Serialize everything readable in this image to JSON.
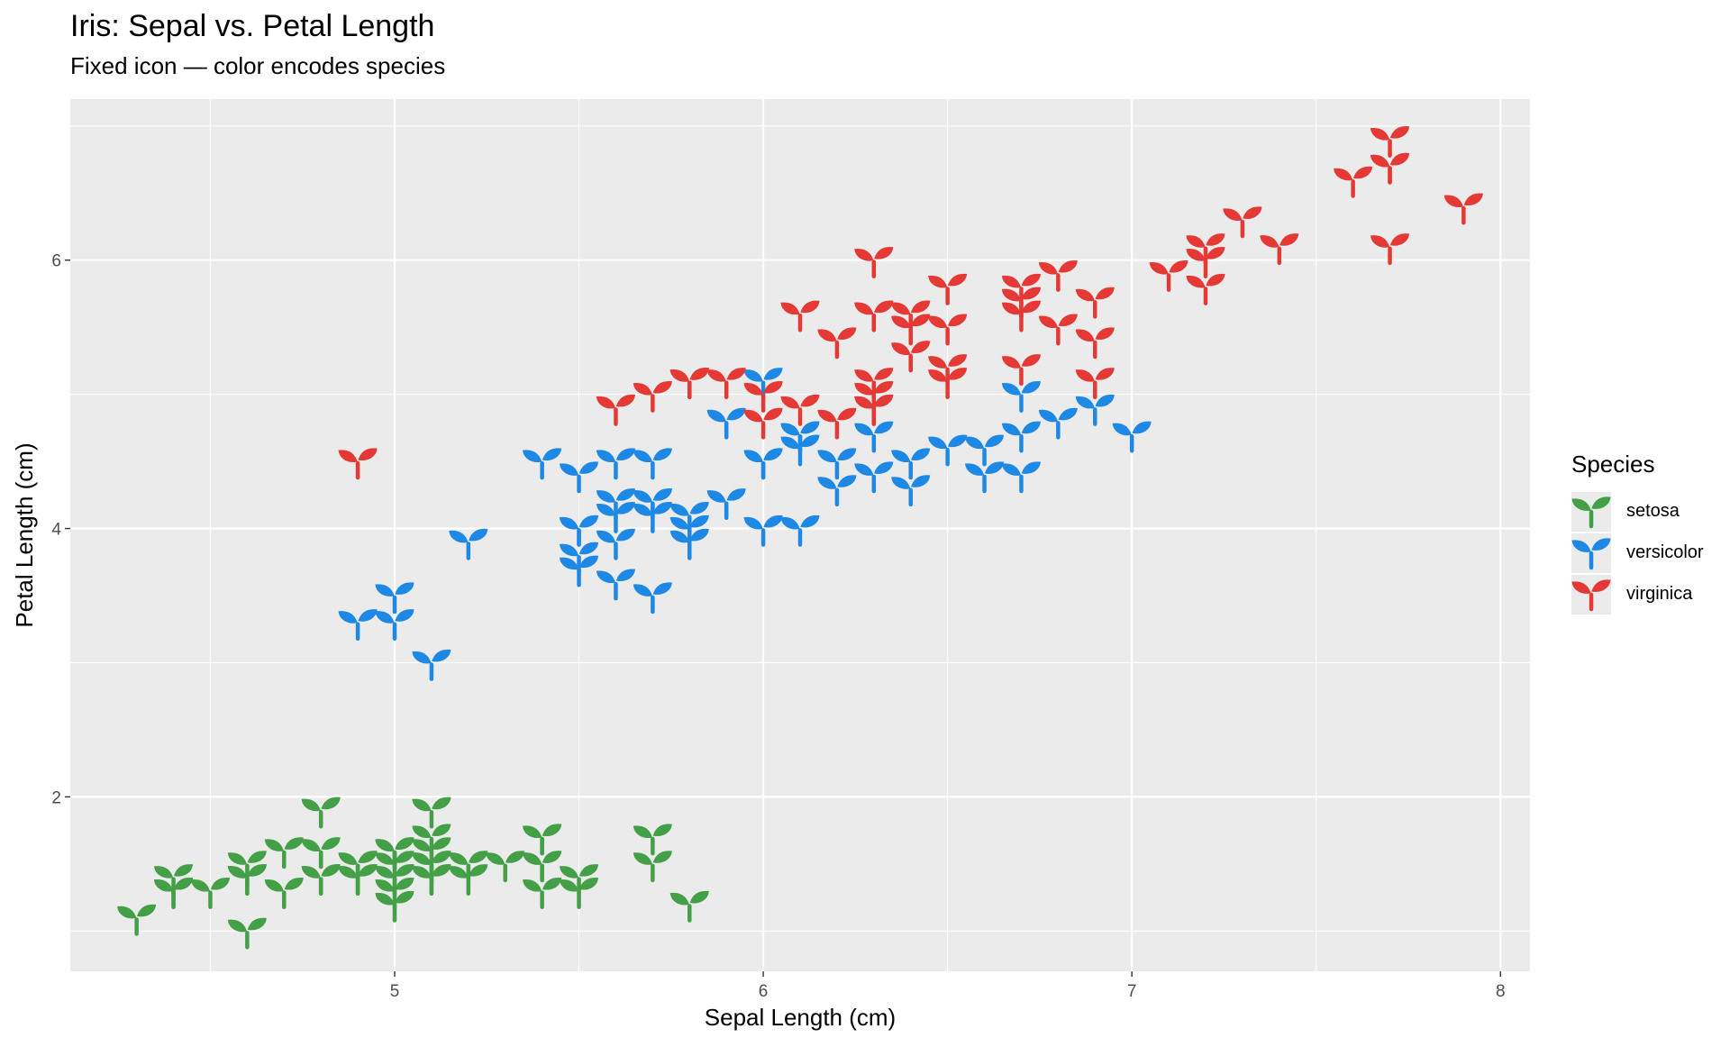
{
  "chart_data": {
    "type": "scatter",
    "title": "Iris: Sepal vs. Petal Length",
    "subtitle": "Fixed icon — color encodes species",
    "xlabel": "Sepal Length (cm)",
    "ylabel": "Petal Length (cm)",
    "xlim": [
      4.12,
      8.08
    ],
    "ylim": [
      0.7,
      7.2
    ],
    "x_ticks": [
      5,
      6,
      7,
      8
    ],
    "y_ticks": [
      2,
      4,
      6
    ],
    "x_tick_labels": [
      "5",
      "6",
      "7",
      "8"
    ],
    "y_tick_labels": [
      "2",
      "4",
      "6"
    ],
    "grid": true,
    "marker_icon": "seedling-icon",
    "legend": {
      "title": "Species",
      "position": "right"
    },
    "series": [
      {
        "name": "setosa",
        "color": "#43a047",
        "points": [
          [
            5.1,
            1.4
          ],
          [
            4.9,
            1.4
          ],
          [
            4.7,
            1.3
          ],
          [
            4.6,
            1.5
          ],
          [
            5.0,
            1.4
          ],
          [
            5.4,
            1.7
          ],
          [
            4.6,
            1.4
          ],
          [
            5.0,
            1.5
          ],
          [
            4.4,
            1.4
          ],
          [
            4.9,
            1.5
          ],
          [
            5.4,
            1.5
          ],
          [
            4.8,
            1.6
          ],
          [
            4.8,
            1.4
          ],
          [
            4.3,
            1.1
          ],
          [
            5.8,
            1.2
          ],
          [
            5.7,
            1.5
          ],
          [
            5.4,
            1.3
          ],
          [
            5.1,
            1.4
          ],
          [
            5.7,
            1.7
          ],
          [
            5.1,
            1.5
          ],
          [
            5.4,
            1.7
          ],
          [
            5.1,
            1.5
          ],
          [
            4.6,
            1.0
          ],
          [
            5.1,
            1.7
          ],
          [
            4.8,
            1.9
          ],
          [
            5.0,
            1.6
          ],
          [
            5.0,
            1.6
          ],
          [
            5.2,
            1.5
          ],
          [
            5.2,
            1.4
          ],
          [
            4.7,
            1.6
          ],
          [
            4.8,
            1.6
          ],
          [
            5.4,
            1.5
          ],
          [
            5.2,
            1.5
          ],
          [
            5.5,
            1.4
          ],
          [
            4.9,
            1.5
          ],
          [
            5.0,
            1.2
          ],
          [
            5.5,
            1.3
          ],
          [
            4.9,
            1.4
          ],
          [
            4.4,
            1.3
          ],
          [
            5.1,
            1.5
          ],
          [
            5.0,
            1.3
          ],
          [
            4.5,
            1.3
          ],
          [
            4.4,
            1.3
          ],
          [
            5.0,
            1.6
          ],
          [
            5.1,
            1.9
          ],
          [
            4.8,
            1.4
          ],
          [
            5.1,
            1.6
          ],
          [
            4.6,
            1.4
          ],
          [
            5.3,
            1.5
          ],
          [
            5.0,
            1.4
          ]
        ]
      },
      {
        "name": "versicolor",
        "color": "#1e88e5",
        "points": [
          [
            7.0,
            4.7
          ],
          [
            6.4,
            4.5
          ],
          [
            6.9,
            4.9
          ],
          [
            5.5,
            4.0
          ],
          [
            6.5,
            4.6
          ],
          [
            5.7,
            4.5
          ],
          [
            6.3,
            4.7
          ],
          [
            4.9,
            3.3
          ],
          [
            6.6,
            4.6
          ],
          [
            5.2,
            3.9
          ],
          [
            5.0,
            3.5
          ],
          [
            5.9,
            4.2
          ],
          [
            6.0,
            4.0
          ],
          [
            6.1,
            4.7
          ],
          [
            5.6,
            3.6
          ],
          [
            6.7,
            4.4
          ],
          [
            5.6,
            4.5
          ],
          [
            5.8,
            4.1
          ],
          [
            6.2,
            4.5
          ],
          [
            5.6,
            3.9
          ],
          [
            5.9,
            4.8
          ],
          [
            6.1,
            4.0
          ],
          [
            6.3,
            4.9
          ],
          [
            6.1,
            4.7
          ],
          [
            6.4,
            4.3
          ],
          [
            6.6,
            4.4
          ],
          [
            6.8,
            4.8
          ],
          [
            6.7,
            5.0
          ],
          [
            6.0,
            4.5
          ],
          [
            5.7,
            3.5
          ],
          [
            5.5,
            3.8
          ],
          [
            5.5,
            3.7
          ],
          [
            5.8,
            3.9
          ],
          [
            6.0,
            5.1
          ],
          [
            5.4,
            4.5
          ],
          [
            6.0,
            4.5
          ],
          [
            6.7,
            4.7
          ],
          [
            6.3,
            4.4
          ],
          [
            5.6,
            4.1
          ],
          [
            5.5,
            4.0
          ],
          [
            5.5,
            4.4
          ],
          [
            6.1,
            4.6
          ],
          [
            5.8,
            4.0
          ],
          [
            5.0,
            3.3
          ],
          [
            5.6,
            4.2
          ],
          [
            5.7,
            4.2
          ],
          [
            5.7,
            4.2
          ],
          [
            6.2,
            4.3
          ],
          [
            5.1,
            3.0
          ],
          [
            5.7,
            4.1
          ]
        ]
      },
      {
        "name": "virginica",
        "color": "#e53935",
        "points": [
          [
            6.3,
            6.0
          ],
          [
            5.8,
            5.1
          ],
          [
            7.1,
            5.9
          ],
          [
            6.3,
            5.6
          ],
          [
            6.5,
            5.8
          ],
          [
            7.6,
            6.6
          ],
          [
            4.9,
            4.5
          ],
          [
            7.3,
            6.3
          ],
          [
            6.7,
            5.8
          ],
          [
            7.2,
            6.1
          ],
          [
            6.5,
            5.1
          ],
          [
            6.4,
            5.3
          ],
          [
            6.8,
            5.5
          ],
          [
            5.7,
            5.0
          ],
          [
            5.8,
            5.1
          ],
          [
            6.4,
            5.3
          ],
          [
            6.5,
            5.5
          ],
          [
            7.7,
            6.7
          ],
          [
            7.7,
            6.9
          ],
          [
            6.0,
            5.0
          ],
          [
            6.9,
            5.7
          ],
          [
            5.6,
            4.9
          ],
          [
            7.7,
            6.7
          ],
          [
            6.3,
            4.9
          ],
          [
            6.7,
            5.7
          ],
          [
            7.2,
            6.0
          ],
          [
            6.2,
            4.8
          ],
          [
            6.1,
            4.9
          ],
          [
            6.4,
            5.6
          ],
          [
            7.2,
            5.8
          ],
          [
            7.4,
            6.1
          ],
          [
            7.9,
            6.4
          ],
          [
            6.4,
            5.6
          ],
          [
            6.3,
            5.1
          ],
          [
            6.1,
            5.6
          ],
          [
            7.7,
            6.1
          ],
          [
            6.3,
            5.6
          ],
          [
            6.4,
            5.5
          ],
          [
            6.0,
            4.8
          ],
          [
            6.9,
            5.4
          ],
          [
            6.7,
            5.6
          ],
          [
            6.9,
            5.1
          ],
          [
            5.8,
            5.1
          ],
          [
            6.8,
            5.9
          ],
          [
            6.7,
            5.7
          ],
          [
            6.7,
            5.2
          ],
          [
            6.3,
            5.0
          ],
          [
            6.5,
            5.2
          ],
          [
            6.2,
            5.4
          ],
          [
            5.9,
            5.1
          ]
        ]
      }
    ]
  }
}
